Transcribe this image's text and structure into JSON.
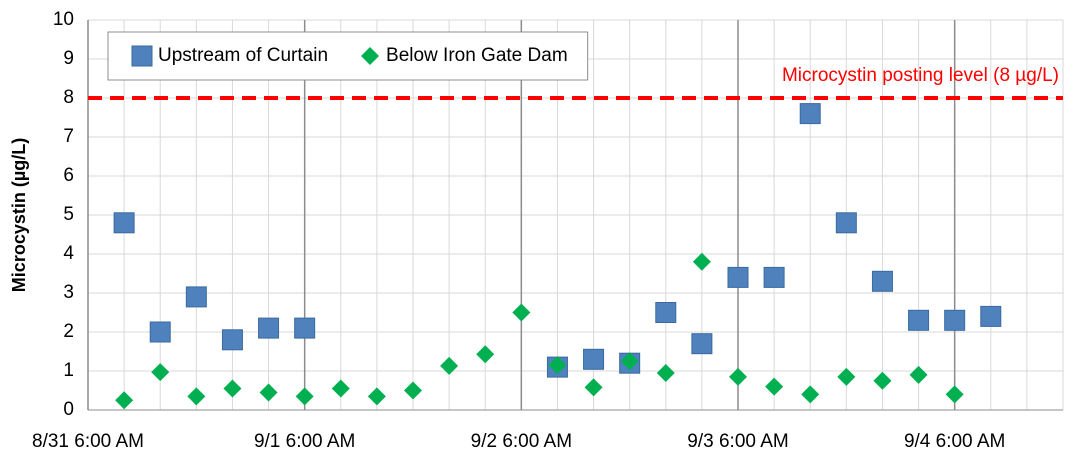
{
  "chart_data": {
    "type": "scatter",
    "ylabel": "Microcystin (µg/L)",
    "xlim": [
      "8/31 6:00 AM",
      "9/4 6:00 PM"
    ],
    "xticks": [
      "8/31 6:00 AM",
      "9/1 6:00 AM",
      "9/2 6:00 AM",
      "9/3 6:00 AM",
      "9/4 6:00 AM"
    ],
    "x_minor_grid_hours": 4,
    "ylim": [
      0,
      10
    ],
    "yticks": [
      0,
      1,
      2,
      3,
      4,
      5,
      6,
      7,
      8,
      9,
      10
    ],
    "grid": true,
    "legend": "top-left",
    "series": [
      {
        "name": "Upstream of Curtain",
        "color": "#4f81bd",
        "marker": "square",
        "x": [
          "8/31 10:00 AM",
          "8/31 2:00 PM",
          "8/31 6:00 PM",
          "8/31 10:00 PM",
          "9/1 2:00 AM",
          "9/1 6:00 AM",
          "9/2 10:00 AM",
          "9/2 2:00 PM",
          "9/2 6:00 PM",
          "9/2 10:00 PM",
          "9/3 2:00 AM",
          "9/3 6:00 AM",
          "9/3 10:00 AM",
          "9/3 2:00 PM",
          "9/3 6:00 PM",
          "9/3 10:00 PM",
          "9/4 2:00 AM",
          "9/4 6:00 AM",
          "9/4 10:00 AM"
        ],
        "values": [
          4.8,
          2.0,
          2.9,
          1.8,
          2.1,
          2.1,
          1.1,
          1.3,
          1.2,
          2.5,
          1.7,
          3.4,
          3.4,
          7.6,
          4.8,
          3.3,
          2.3,
          2.3,
          2.4
        ]
      },
      {
        "name": "Below Iron Gate Dam",
        "color": "#00b050",
        "marker": "diamond",
        "x": [
          "8/31 10:00 AM",
          "8/31 2:00 PM",
          "8/31 6:00 PM",
          "8/31 10:00 PM",
          "9/1 2:00 AM",
          "9/1 6:00 AM",
          "9/1 10:00 AM",
          "9/1 2:00 PM",
          "9/1 6:00 PM",
          "9/1 10:00 PM",
          "9/2 2:00 AM",
          "9/2 6:00 AM",
          "9/2 10:00 AM",
          "9/2 2:00 PM",
          "9/2 6:00 PM",
          "9/2 10:00 PM",
          "9/3 2:00 AM",
          "9/3 6:00 AM",
          "9/3 10:00 AM",
          "9/3 2:00 PM",
          "9/3 6:00 PM",
          "9/3 10:00 PM",
          "9/4 2:00 AM",
          "9/4 6:00 AM"
        ],
        "values": [
          0.25,
          0.97,
          0.35,
          0.55,
          0.45,
          0.35,
          0.55,
          0.35,
          0.5,
          1.13,
          1.43,
          2.5,
          1.15,
          0.58,
          1.25,
          0.95,
          3.8,
          0.85,
          0.6,
          0.4,
          0.85,
          0.75,
          0.9,
          0.4
        ]
      }
    ],
    "reference_line": {
      "value": 8,
      "color": "#ff0000",
      "label": "Microcystin posting level (8 µg/L)"
    }
  }
}
